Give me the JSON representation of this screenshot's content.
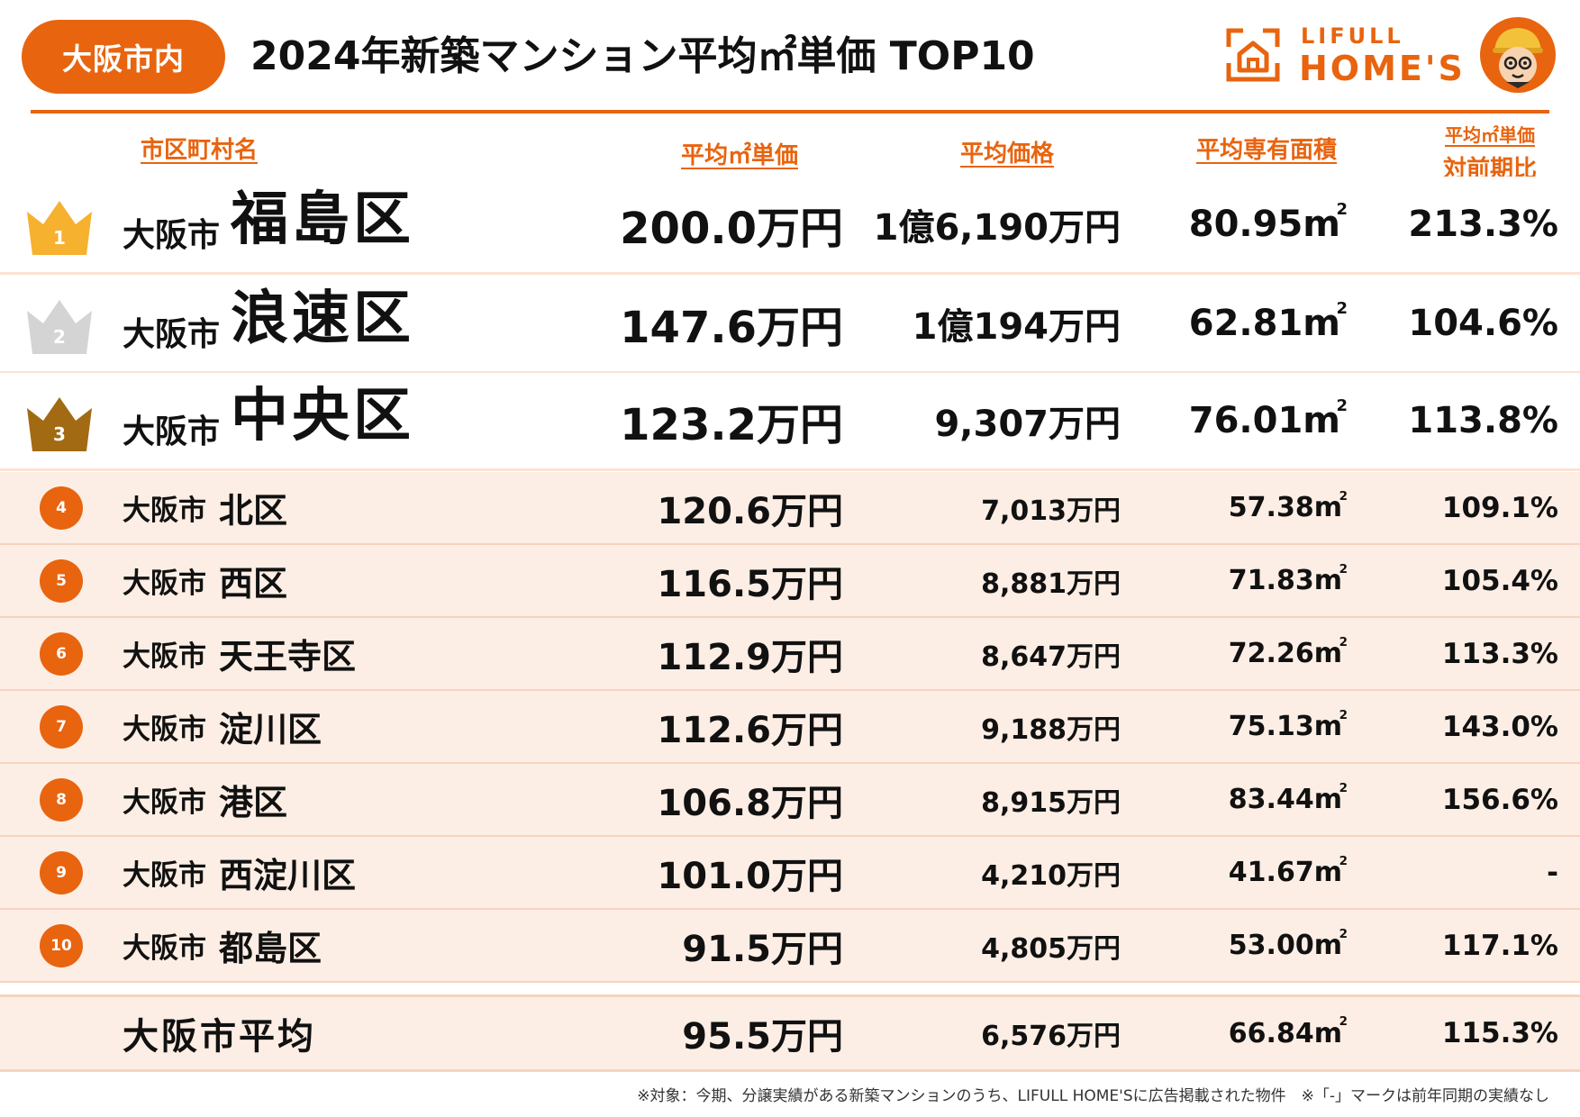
{
  "header": {
    "area_label": "大阪市内",
    "title": "2024年新築マンション平均㎡単価 TOP10",
    "logo_line1": "LIFULL",
    "logo_line2": "HOME'S",
    "logo_icon": "house-icon",
    "mascot_icon": "mascot-icon"
  },
  "columns": {
    "name": "市区町村名",
    "unit_price": "平均㎡単価",
    "avg_price": "平均価格",
    "area": "平均専有面積",
    "yoy_line1": "平均㎡単価",
    "yoy_line2": "対前期比"
  },
  "colors": {
    "accent": "#e8640f",
    "gold": "#f6b12e",
    "silver": "#d4d4d4",
    "bronze": "#a26a12",
    "row_tint": "#fdeee5"
  },
  "footnote": "※対象：今期、分譲実績がある新築マンションのうち、LIFULL HOME'Sに広告掲載された物件　※「-」マークは前年同期の実績なし",
  "chart_data": {
    "type": "table",
    "title": "2024年新築マンション平均㎡単価 TOP10",
    "subtitle": "大阪市内",
    "headers": [
      "市区町村名",
      "平均㎡単価",
      "平均価格",
      "平均専有面積",
      "平均㎡単価 対前期比"
    ],
    "rows": [
      {
        "rank": "1",
        "city": "大阪市",
        "ward": "福島区",
        "unit_price": "200.0万円",
        "avg_price": "1億6,190万円",
        "area_value": "80.95",
        "area_unit": "m",
        "area_sup": "2",
        "yoy": "213.3%"
      },
      {
        "rank": "2",
        "city": "大阪市",
        "ward": "浪速区",
        "unit_price": "147.6万円",
        "avg_price": "1億194万円",
        "area_value": "62.81",
        "area_unit": "m",
        "area_sup": "2",
        "yoy": "104.6%"
      },
      {
        "rank": "3",
        "city": "大阪市",
        "ward": "中央区",
        "unit_price": "123.2万円",
        "avg_price": "9,307万円",
        "area_value": "76.01",
        "area_unit": "m",
        "area_sup": "2",
        "yoy": "113.8%"
      },
      {
        "rank": "4",
        "city": "大阪市",
        "ward": "北区",
        "unit_price": "120.6万円",
        "avg_price": "7,013万円",
        "area_value": "57.38",
        "area_unit": "m",
        "area_sup": "2",
        "yoy": "109.1%"
      },
      {
        "rank": "5",
        "city": "大阪市",
        "ward": "西区",
        "unit_price": "116.5万円",
        "avg_price": "8,881万円",
        "area_value": "71.83",
        "area_unit": "m",
        "area_sup": "2",
        "yoy": "105.4%"
      },
      {
        "rank": "6",
        "city": "大阪市",
        "ward": "天王寺区",
        "unit_price": "112.9万円",
        "avg_price": "8,647万円",
        "area_value": "72.26",
        "area_unit": "m",
        "area_sup": "2",
        "yoy": "113.3%"
      },
      {
        "rank": "7",
        "city": "大阪市",
        "ward": "淀川区",
        "unit_price": "112.6万円",
        "avg_price": "9,188万円",
        "area_value": "75.13",
        "area_unit": "m",
        "area_sup": "2",
        "yoy": "143.0%"
      },
      {
        "rank": "8",
        "city": "大阪市",
        "ward": "港区",
        "unit_price": "106.8万円",
        "avg_price": "8,915万円",
        "area_value": "83.44",
        "area_unit": "m",
        "area_sup": "2",
        "yoy": "156.6%"
      },
      {
        "rank": "9",
        "city": "大阪市",
        "ward": "西淀川区",
        "unit_price": "101.0万円",
        "avg_price": "4,210万円",
        "area_value": "41.67",
        "area_unit": "m",
        "area_sup": "2",
        "yoy": "-"
      },
      {
        "rank": "10",
        "city": "大阪市",
        "ward": "都島区",
        "unit_price": "91.5万円",
        "avg_price": "4,805万円",
        "area_value": "53.00",
        "area_unit": "m",
        "area_sup": "2",
        "yoy": "117.1%"
      }
    ],
    "average": {
      "name": "大阪市平均",
      "unit_price": "95.5万円",
      "avg_price": "6,576万円",
      "area_value": "66.84",
      "area_unit": "m",
      "area_sup": "2",
      "yoy": "115.3%"
    }
  }
}
